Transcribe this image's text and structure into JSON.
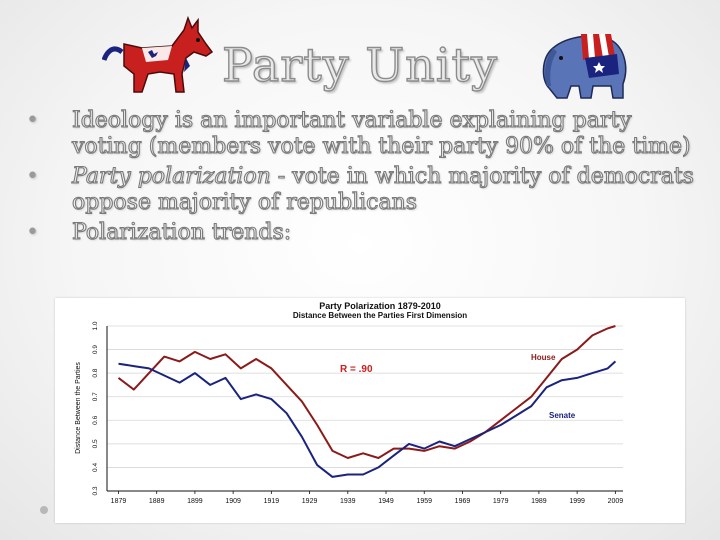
{
  "slide": {
    "title": "Party Unity",
    "mascots": {
      "left": "donkey-icon",
      "right": "elephant-icon"
    },
    "bullets": [
      {
        "text": "Ideology is an important variable explaining party voting (members vote with their party 90% of the time)"
      },
      {
        "emphasis": "Party polarization",
        "rest": " - vote in which majority of democrats oppose majority of republicans"
      },
      {
        "text": "Polarization trends:"
      }
    ]
  },
  "chart_data": {
    "type": "line",
    "title": "Party Polarization 1879-2010",
    "subtitle": "Distance Between the Parties First Dimension",
    "ylabel": "Distance Between the Parties",
    "xlabel": "",
    "xlim": [
      1876,
      2011
    ],
    "ylim": [
      0.3,
      1.0
    ],
    "yticks": [
      "0.3",
      "0.4",
      "0.5",
      "0.6",
      "0.7",
      "0.8",
      "0.9",
      "1.0"
    ],
    "xtick_labels": [
      "1879",
      "1889",
      "1899",
      "1909",
      "1919",
      "1929",
      "1939",
      "1949",
      "1959",
      "1969",
      "1979",
      "1989",
      "1999",
      "2009"
    ],
    "grid": true,
    "annotation": "R = .90",
    "series": [
      {
        "name": "House",
        "color": "#8b1a1a",
        "x": [
          1879,
          1883,
          1887,
          1891,
          1895,
          1899,
          1903,
          1907,
          1911,
          1915,
          1919,
          1923,
          1927,
          1931,
          1935,
          1939,
          1943,
          1947,
          1951,
          1955,
          1959,
          1963,
          1967,
          1971,
          1975,
          1979,
          1983,
          1987,
          1991,
          1995,
          1999,
          2003,
          2007,
          2009
        ],
        "y": [
          0.78,
          0.73,
          0.8,
          0.87,
          0.85,
          0.89,
          0.86,
          0.88,
          0.82,
          0.86,
          0.82,
          0.75,
          0.68,
          0.58,
          0.47,
          0.44,
          0.46,
          0.44,
          0.48,
          0.48,
          0.47,
          0.49,
          0.48,
          0.51,
          0.55,
          0.6,
          0.65,
          0.7,
          0.78,
          0.86,
          0.9,
          0.96,
          0.99,
          1.0
        ]
      },
      {
        "name": "Senate",
        "color": "#1a237e",
        "x": [
          1879,
          1883,
          1887,
          1891,
          1895,
          1899,
          1903,
          1907,
          1911,
          1915,
          1919,
          1923,
          1927,
          1931,
          1935,
          1939,
          1943,
          1947,
          1951,
          1955,
          1959,
          1963,
          1967,
          1971,
          1975,
          1979,
          1983,
          1987,
          1991,
          1995,
          1999,
          2003,
          2007,
          2009
        ],
        "y": [
          0.84,
          0.83,
          0.82,
          0.79,
          0.76,
          0.8,
          0.75,
          0.78,
          0.69,
          0.71,
          0.69,
          0.63,
          0.53,
          0.41,
          0.36,
          0.37,
          0.37,
          0.4,
          0.45,
          0.5,
          0.48,
          0.51,
          0.49,
          0.52,
          0.55,
          0.58,
          0.62,
          0.66,
          0.74,
          0.77,
          0.78,
          0.8,
          0.82,
          0.85
        ]
      }
    ]
  }
}
